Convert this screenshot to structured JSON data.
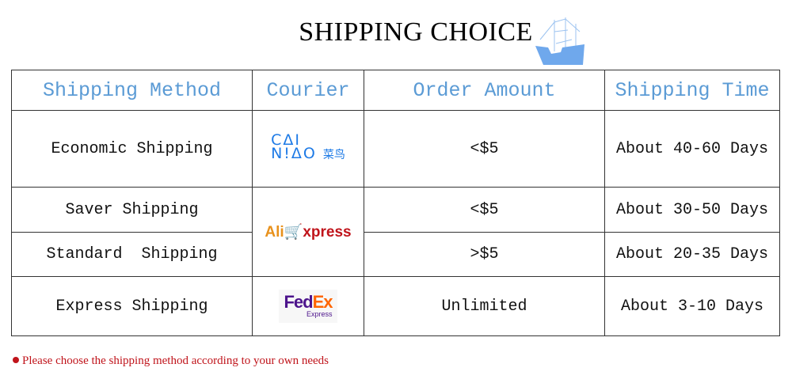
{
  "title": "SHIPPING CHOICE",
  "headers": [
    "Shipping Method",
    "Courier",
    "Order Amount",
    "Shipping Time"
  ],
  "rows": [
    {
      "method": "Economic Shipping",
      "courier": "CAINIAO 菜鸟",
      "amount": "<$5",
      "time": "About 40-60 Days"
    },
    {
      "method": "Saver Shipping",
      "courier": "AliExpress",
      "amount": "<$5",
      "time": "About 30-50 Days"
    },
    {
      "method": "Standard  Shipping",
      "courier": "AliExpress",
      "amount": ">$5",
      "time": "About 20-35 Days"
    },
    {
      "method": "Express Shipping",
      "courier": "FedEx Express",
      "amount": "Unlimited",
      "time": "About 3-10 Days"
    }
  ],
  "logos": {
    "cainiao_l1": "CΔI",
    "cainiao_l2": "N!ΔO",
    "cainiao_cn": "菜鸟",
    "ali_a": "Ali",
    "ali_b": "xpress",
    "fedex_fe": "Fed",
    "fedex_ex": "Ex",
    "fedex_sub": "Express"
  },
  "note": "Please choose the shipping method according to your own needs",
  "colors": {
    "header": "#5b9bd5",
    "note": "#c0141b",
    "ship": "#6fa8ec"
  }
}
